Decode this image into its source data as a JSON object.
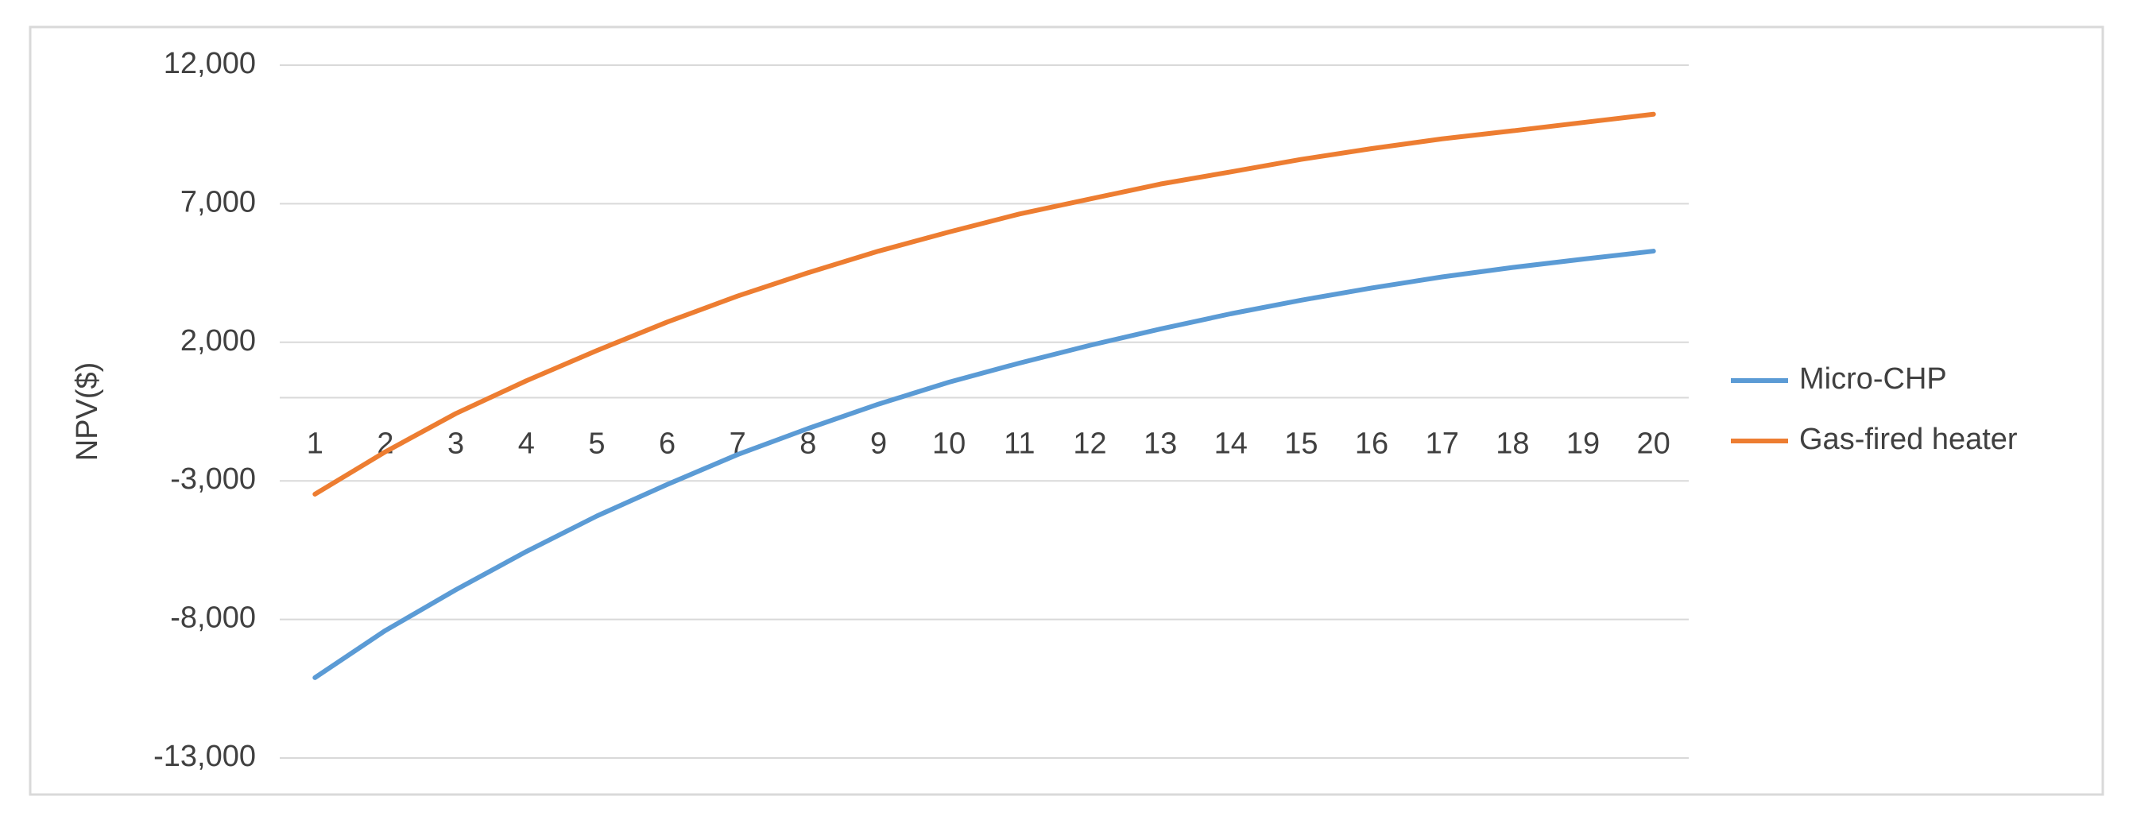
{
  "chart_data": {
    "type": "line",
    "y_label": "NPV($)",
    "categories": [
      "1",
      "2",
      "3",
      "4",
      "5",
      "6",
      "7",
      "8",
      "9",
      "10",
      "11",
      "12",
      "13",
      "14",
      "15",
      "16",
      "17",
      "18",
      "19",
      "20"
    ],
    "series": [
      {
        "name": "Micro-CHP",
        "color": "#5b9bd5",
        "values": [
          -10100,
          -8400,
          -6930,
          -5550,
          -4270,
          -3130,
          -2050,
          -1110,
          -230,
          560,
          1250,
          1890,
          2480,
          3030,
          3520,
          3960,
          4360,
          4700,
          5000,
          5290
        ]
      },
      {
        "name": "Gas-fired heater",
        "color": "#ed7d31",
        "values": [
          -3480,
          -1950,
          -570,
          610,
          1700,
          2730,
          3670,
          4510,
          5290,
          5980,
          6630,
          7170,
          7710,
          8150,
          8600,
          8990,
          9340,
          9630,
          9930,
          10230
        ]
      }
    ],
    "ylim": [
      -13000,
      12000
    ],
    "yticks": [
      {
        "value": -13000,
        "label": "-13,000"
      },
      {
        "value": -8000,
        "label": "-8,000"
      },
      {
        "value": -3000,
        "label": "-3,000"
      },
      {
        "value": 2000,
        "label": "2,000"
      },
      {
        "value": 7000,
        "label": "7,000"
      },
      {
        "value": 12000,
        "label": "12,000"
      }
    ],
    "grid": true,
    "legend": "right"
  }
}
